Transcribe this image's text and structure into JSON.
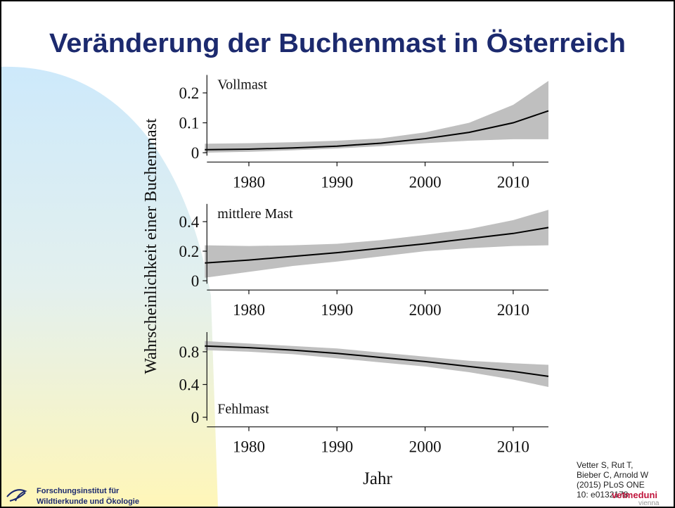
{
  "title": "Veränderung der Buchenmast in Österreich",
  "y_label": "Wahrscheinlichkeit einer Buchenmast",
  "x_label": "Jahr",
  "citation": [
    "Vetter S, Rut T,",
    "Bieber C, Arnold W",
    "(2015) PLoS ONE",
    "10: e0132178"
  ],
  "footer": {
    "institute": [
      "Forschungsinstitut für",
      "Wildtierkunde und Ökologie"
    ],
    "brand": "vetmeduni",
    "brand_sub": "vienna"
  },
  "chart_data": [
    {
      "type": "line",
      "annotation": "Vollmast",
      "annotation_corner": "top-left",
      "x": [
        1975,
        1980,
        1985,
        1990,
        1995,
        2000,
        2005,
        2010,
        2014
      ],
      "series": [
        {
          "color": "#000000",
          "band_color": "#bfbfbf",
          "values": [
            0.01,
            0.012,
            0.016,
            0.022,
            0.032,
            0.047,
            0.068,
            0.1,
            0.14
          ],
          "lower": [
            0,
            0.003,
            0.008,
            0.014,
            0.022,
            0.032,
            0.04,
            0.045,
            0.045
          ],
          "upper": [
            0.03,
            0.032,
            0.035,
            0.04,
            0.048,
            0.068,
            0.1,
            0.16,
            0.24
          ]
        }
      ],
      "xlim": [
        1975,
        2014
      ],
      "xticks": [
        1980,
        1990,
        2000,
        2010
      ],
      "ylim": [
        -0.01,
        0.26
      ],
      "yticks": [
        0,
        0.1,
        0.2
      ]
    },
    {
      "type": "line",
      "annotation": "mittlere Mast",
      "annotation_corner": "top-left",
      "x": [
        1975,
        1980,
        1985,
        1990,
        1995,
        2000,
        2005,
        2010,
        2014
      ],
      "series": [
        {
          "color": "#000000",
          "band_color": "#bfbfbf",
          "values": [
            0.12,
            0.14,
            0.165,
            0.19,
            0.22,
            0.25,
            0.285,
            0.32,
            0.36
          ],
          "lower": [
            0.02,
            0.06,
            0.1,
            0.13,
            0.165,
            0.2,
            0.22,
            0.235,
            0.24
          ],
          "upper": [
            0.24,
            0.235,
            0.24,
            0.25,
            0.275,
            0.31,
            0.35,
            0.41,
            0.48
          ]
        }
      ],
      "xlim": [
        1975,
        2014
      ],
      "xticks": [
        1980,
        1990,
        2000,
        2010
      ],
      "ylim": [
        -0.02,
        0.52
      ],
      "yticks": [
        0,
        0.2,
        0.4
      ]
    },
    {
      "type": "line",
      "annotation": "Fehlmast",
      "annotation_corner": "bottom-left",
      "x": [
        1975,
        1980,
        1985,
        1990,
        1995,
        2000,
        2005,
        2010,
        2014
      ],
      "series": [
        {
          "color": "#000000",
          "band_color": "#bfbfbf",
          "values": [
            0.87,
            0.85,
            0.82,
            0.78,
            0.73,
            0.68,
            0.62,
            0.56,
            0.5
          ],
          "lower": [
            0.82,
            0.8,
            0.77,
            0.72,
            0.67,
            0.62,
            0.55,
            0.46,
            0.37
          ],
          "upper": [
            0.93,
            0.9,
            0.87,
            0.84,
            0.79,
            0.74,
            0.69,
            0.66,
            0.64
          ]
        }
      ],
      "xlim": [
        1975,
        2014
      ],
      "xticks": [
        1980,
        1990,
        2000,
        2010
      ],
      "ylim": [
        -0.04,
        1.04
      ],
      "yticks": [
        0,
        0.4,
        0.8
      ]
    }
  ]
}
